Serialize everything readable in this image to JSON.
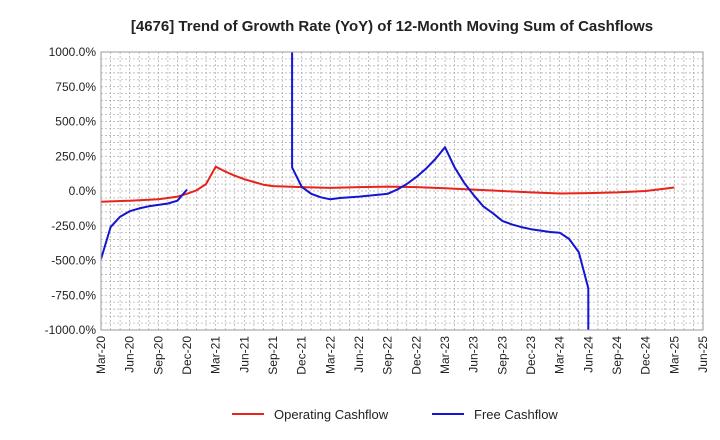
{
  "chart_data": {
    "type": "line",
    "title": "[4676]  Trend of Growth Rate (YoY) of 12-Month Moving Sum of Cashflows",
    "xlabel": "",
    "ylabel": "",
    "ylim": [
      -1000,
      1000
    ],
    "y_ticks": [
      -1000,
      -750,
      -500,
      -250,
      0,
      250,
      500,
      750,
      1000
    ],
    "y_tick_labels": [
      "-1000.0%",
      "-750.0%",
      "-500.0%",
      "-250.0%",
      "0.0%",
      "250.0%",
      "500.0%",
      "750.0%",
      "1000.0%"
    ],
    "x_tick_labels": [
      "Mar-20",
      "Jun-20",
      "Sep-20",
      "Dec-20",
      "Mar-21",
      "Jun-21",
      "Sep-21",
      "Dec-21",
      "Mar-22",
      "Jun-22",
      "Sep-22",
      "Dec-22",
      "Mar-23",
      "Jun-23",
      "Sep-23",
      "Dec-23",
      "Mar-24",
      "Jun-24",
      "Sep-24",
      "Dec-24",
      "Mar-25",
      "Jun-25"
    ],
    "x_range": [
      "2020-03",
      "2025-06"
    ],
    "grid": true,
    "legend_position": "bottom",
    "series": [
      {
        "name": "Operating Cashflow",
        "color": "#e8231b",
        "points": [
          [
            "2020-03",
            -78
          ],
          [
            "2020-06",
            -70
          ],
          [
            "2020-09",
            -60
          ],
          [
            "2020-10",
            -50
          ],
          [
            "2020-11",
            -40
          ],
          [
            "2020-12",
            -20
          ],
          [
            "2021-01",
            5
          ],
          [
            "2021-02",
            50
          ],
          [
            "2021-03",
            175
          ],
          [
            "2021-04",
            140
          ],
          [
            "2021-05",
            110
          ],
          [
            "2021-06",
            85
          ],
          [
            "2021-07",
            65
          ],
          [
            "2021-08",
            45
          ],
          [
            "2021-09",
            35
          ],
          [
            "2021-12",
            28
          ],
          [
            "2022-03",
            22
          ],
          [
            "2022-06",
            28
          ],
          [
            "2022-09",
            32
          ],
          [
            "2022-12",
            28
          ],
          [
            "2023-03",
            20
          ],
          [
            "2023-06",
            10
          ],
          [
            "2023-09",
            0
          ],
          [
            "2023-12",
            -10
          ],
          [
            "2024-03",
            -18
          ],
          [
            "2024-06",
            -15
          ],
          [
            "2024-09",
            -10
          ],
          [
            "2024-12",
            0
          ],
          [
            "2025-03",
            25
          ]
        ]
      },
      {
        "name": "Free Cashflow",
        "color": "#1414d2",
        "points": [
          [
            "2020-03",
            -490
          ],
          [
            "2020-04",
            -260
          ],
          [
            "2020-05",
            -185
          ],
          [
            "2020-06",
            -145
          ],
          [
            "2020-07",
            -125
          ],
          [
            "2020-08",
            -110
          ],
          [
            "2020-09",
            -100
          ],
          [
            "2020-10",
            -90
          ],
          [
            "2020-11",
            -70
          ],
          [
            "2020-12",
            10
          ],
          null,
          [
            "2021-11",
            1000
          ],
          [
            "2021-11",
            170
          ],
          [
            "2021-12",
            30
          ],
          [
            "2022-01",
            -20
          ],
          [
            "2022-02",
            -45
          ],
          [
            "2022-03",
            -60
          ],
          [
            "2022-04",
            -50
          ],
          [
            "2022-06",
            -40
          ],
          [
            "2022-09",
            -20
          ],
          [
            "2022-10",
            10
          ],
          [
            "2022-11",
            50
          ],
          [
            "2022-12",
            100
          ],
          [
            "2023-01",
            160
          ],
          [
            "2023-02",
            230
          ],
          [
            "2023-03",
            315
          ],
          [
            "2023-04",
            170
          ],
          [
            "2023-05",
            60
          ],
          [
            "2023-06",
            -30
          ],
          [
            "2023-07",
            -110
          ],
          [
            "2023-08",
            -160
          ],
          [
            "2023-09",
            -215
          ],
          [
            "2023-10",
            -240
          ],
          [
            "2023-11",
            -260
          ],
          [
            "2023-12",
            -275
          ],
          [
            "2024-01",
            -285
          ],
          [
            "2024-02",
            -295
          ],
          [
            "2024-03",
            -300
          ],
          [
            "2024-04",
            -345
          ],
          [
            "2024-05",
            -440
          ],
          [
            "2024-06",
            -700
          ],
          [
            "2024-06",
            -1000
          ]
        ]
      }
    ]
  }
}
